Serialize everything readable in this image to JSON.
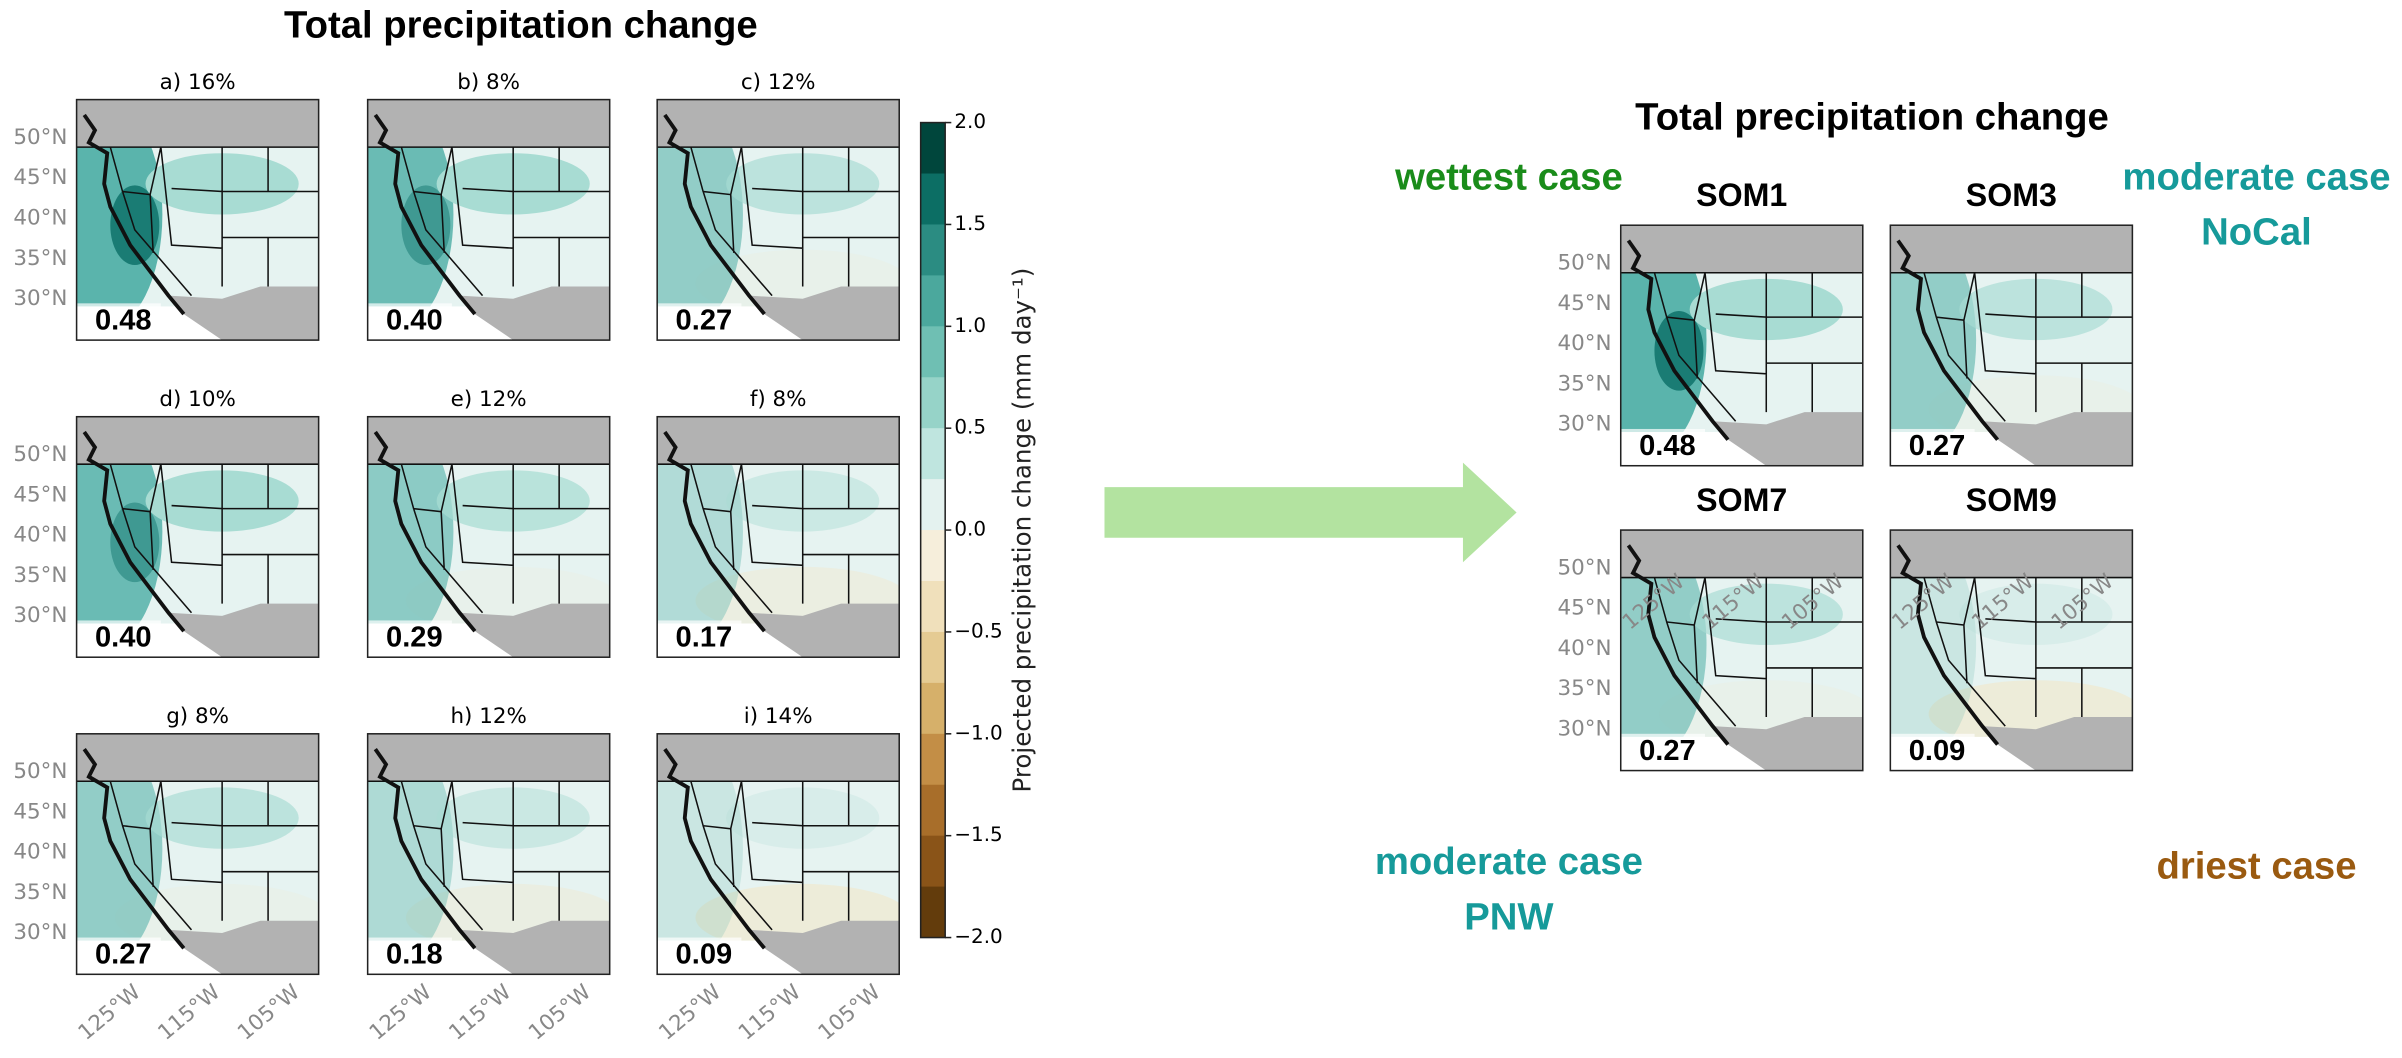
{
  "left": {
    "title": "Total precipitation change",
    "panels": [
      {
        "title": "a) 16%",
        "value": "0.48"
      },
      {
        "title": "b) 8%",
        "value": "0.40"
      },
      {
        "title": "c) 12%",
        "value": "0.27"
      },
      {
        "title": "d) 10%",
        "value": "0.40"
      },
      {
        "title": "e) 12%",
        "value": "0.29"
      },
      {
        "title": "f) 8%",
        "value": "0.17"
      },
      {
        "title": "g) 8%",
        "value": "0.27"
      },
      {
        "title": "h) 12%",
        "value": "0.18"
      },
      {
        "title": "i) 14%",
        "value": "0.09"
      }
    ],
    "lat_labels": [
      "50°N",
      "45°N",
      "40°N",
      "35°N",
      "30°N"
    ],
    "lon_labels": [
      "125°W",
      "115°W",
      "105°W"
    ],
    "colorbar": {
      "label": "Projected precipitation change (mm day⁻¹)",
      "ticks": [
        "2.0",
        "1.5",
        "1.0",
        "0.5",
        "0.0",
        "−0.5",
        "−1.0",
        "−1.5",
        "−2.0"
      ]
    }
  },
  "right": {
    "title": "Total precipitation change",
    "panels": [
      {
        "title": "SOM1",
        "value": "0.48"
      },
      {
        "title": "SOM3",
        "value": "0.27"
      },
      {
        "title": "SOM7",
        "value": "0.27"
      },
      {
        "title": "SOM9",
        "value": "0.09"
      }
    ],
    "annotations": {
      "wettest": "wettest case",
      "moderate_nocal": [
        "moderate case",
        "NoCal"
      ],
      "moderate_pnw": [
        "moderate case",
        "PNW"
      ],
      "driest": "driest case"
    }
  }
}
